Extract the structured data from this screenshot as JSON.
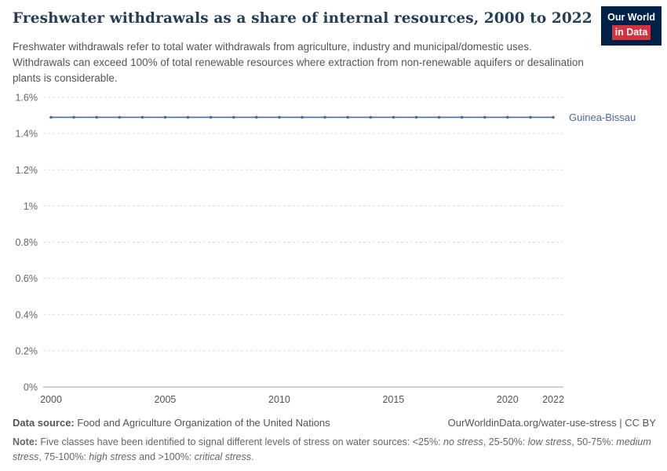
{
  "header": {
    "title": "Freshwater withdrawals as a share of internal resources, 2000 to 2022",
    "subtitle": "Freshwater withdrawals refer to total water withdrawals from agriculture, industry and municipal/domestic uses. Withdrawals can exceed 100% of total renewable resources where extraction from non-renewable aquifers or desalination plants is considerable.",
    "logo": {
      "line1": "Our World",
      "line2": "in Data"
    }
  },
  "colors": {
    "series_blue": "#4C6A9C",
    "logo_background": "#002147",
    "logo_accent": "#D4323E",
    "gridline": "#DCDCDC",
    "axis": "#A0A0A0"
  },
  "chart_data": {
    "type": "line",
    "title": "Freshwater withdrawals as a share of internal resources, 2000 to 2022",
    "x": [
      2000,
      2001,
      2002,
      2003,
      2004,
      2005,
      2006,
      2007,
      2008,
      2009,
      2010,
      2011,
      2012,
      2013,
      2014,
      2015,
      2016,
      2017,
      2018,
      2019,
      2020,
      2021,
      2022
    ],
    "series": [
      {
        "name": "Guinea-Bissau",
        "color": "#4C6A9C",
        "values": [
          1.49,
          1.49,
          1.49,
          1.49,
          1.49,
          1.49,
          1.49,
          1.49,
          1.49,
          1.49,
          1.49,
          1.49,
          1.49,
          1.49,
          1.49,
          1.49,
          1.49,
          1.49,
          1.49,
          1.49,
          1.49,
          1.49,
          1.49
        ]
      }
    ],
    "xlim": [
      2000,
      2022
    ],
    "ylim": [
      0,
      1.6
    ],
    "yticks": [
      {
        "value": 0,
        "label": "0%"
      },
      {
        "value": 0.2,
        "label": "0.2%"
      },
      {
        "value": 0.4,
        "label": "0.4%"
      },
      {
        "value": 0.6,
        "label": "0.6%"
      },
      {
        "value": 0.8,
        "label": "0.8%"
      },
      {
        "value": 1,
        "label": "1%"
      },
      {
        "value": 1.2,
        "label": "1.2%"
      },
      {
        "value": 1.4,
        "label": "1.4%"
      },
      {
        "value": 1.6,
        "label": "1.6%"
      }
    ],
    "xticks": [
      {
        "value": 2000,
        "label": "2000"
      },
      {
        "value": 2005,
        "label": "2005"
      },
      {
        "value": 2010,
        "label": "2010"
      },
      {
        "value": 2015,
        "label": "2015"
      },
      {
        "value": 2020,
        "label": "2020"
      },
      {
        "value": 2022,
        "label": "2022"
      }
    ],
    "grid": "horizontal-dashed",
    "legend_position": "end-of-line-label"
  },
  "footer": {
    "datasource_label": "Data source:",
    "datasource_text": " Food and Agriculture Organization of the United Nations",
    "link": "OurWorldinData.org/water-use-stress | CC BY",
    "note_label": "Note:",
    "note_segments": [
      {
        "t": " Five classes have been identified to signal different levels of stress on water sources: <25%: ",
        "i": false
      },
      {
        "t": "no stress",
        "i": true
      },
      {
        "t": ", 25-50%: ",
        "i": false
      },
      {
        "t": "low stress",
        "i": true
      },
      {
        "t": ", 50-75%: ",
        "i": false
      },
      {
        "t": "medium stress",
        "i": true
      },
      {
        "t": ", 75-100%: ",
        "i": false
      },
      {
        "t": "high stress",
        "i": true
      },
      {
        "t": " and >100%: ",
        "i": false
      },
      {
        "t": "critical stress",
        "i": true
      },
      {
        "t": ".",
        "i": false
      }
    ]
  }
}
